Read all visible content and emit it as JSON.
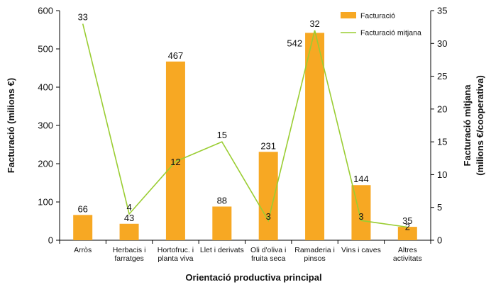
{
  "chart_data": {
    "type": "bar",
    "xlabel": "Orientació productiva principal",
    "ylabel": "Facturació (milions €)",
    "y2label_line1": "Facturació mitjana",
    "y2label_line2": "(milions €/cooperativa)",
    "ylim": [
      0,
      600
    ],
    "yticks": [
      "0",
      "100",
      "200",
      "300",
      "400",
      "500",
      "600"
    ],
    "y2lim": [
      0,
      35
    ],
    "y2ticks": [
      "0",
      "5",
      "10",
      "15",
      "20",
      "25",
      "30",
      "35"
    ],
    "categories": [
      [
        "Arròs"
      ],
      [
        "Herbacis i",
        "farratges"
      ],
      [
        "Hortofruc. i",
        "planta viva"
      ],
      [
        "Llet i derivats"
      ],
      [
        "Oli d'oliva i",
        "fruita seca"
      ],
      [
        "Ramaderia i",
        "pinsos"
      ],
      [
        "Vins i caves"
      ],
      [
        "Altres",
        "activitats"
      ]
    ],
    "series": [
      {
        "name": "Facturació",
        "kind": "bar",
        "axis": "left",
        "color": "#F7A823",
        "values": [
          66,
          43,
          467,
          88,
          231,
          542,
          144,
          35
        ],
        "labels": [
          "66",
          "43",
          "467",
          "88",
          "231",
          "542",
          "144",
          "35"
        ]
      },
      {
        "name": "Facturació mitjana",
        "kind": "line",
        "axis": "right",
        "color": "#9ACD32",
        "values": [
          33,
          4,
          12,
          15,
          3,
          32,
          3,
          2
        ],
        "labels": [
          "33",
          "4",
          "12",
          "15",
          "3",
          "32",
          "3",
          "2"
        ]
      }
    ],
    "legend_position": "top-right",
    "grid": false
  }
}
